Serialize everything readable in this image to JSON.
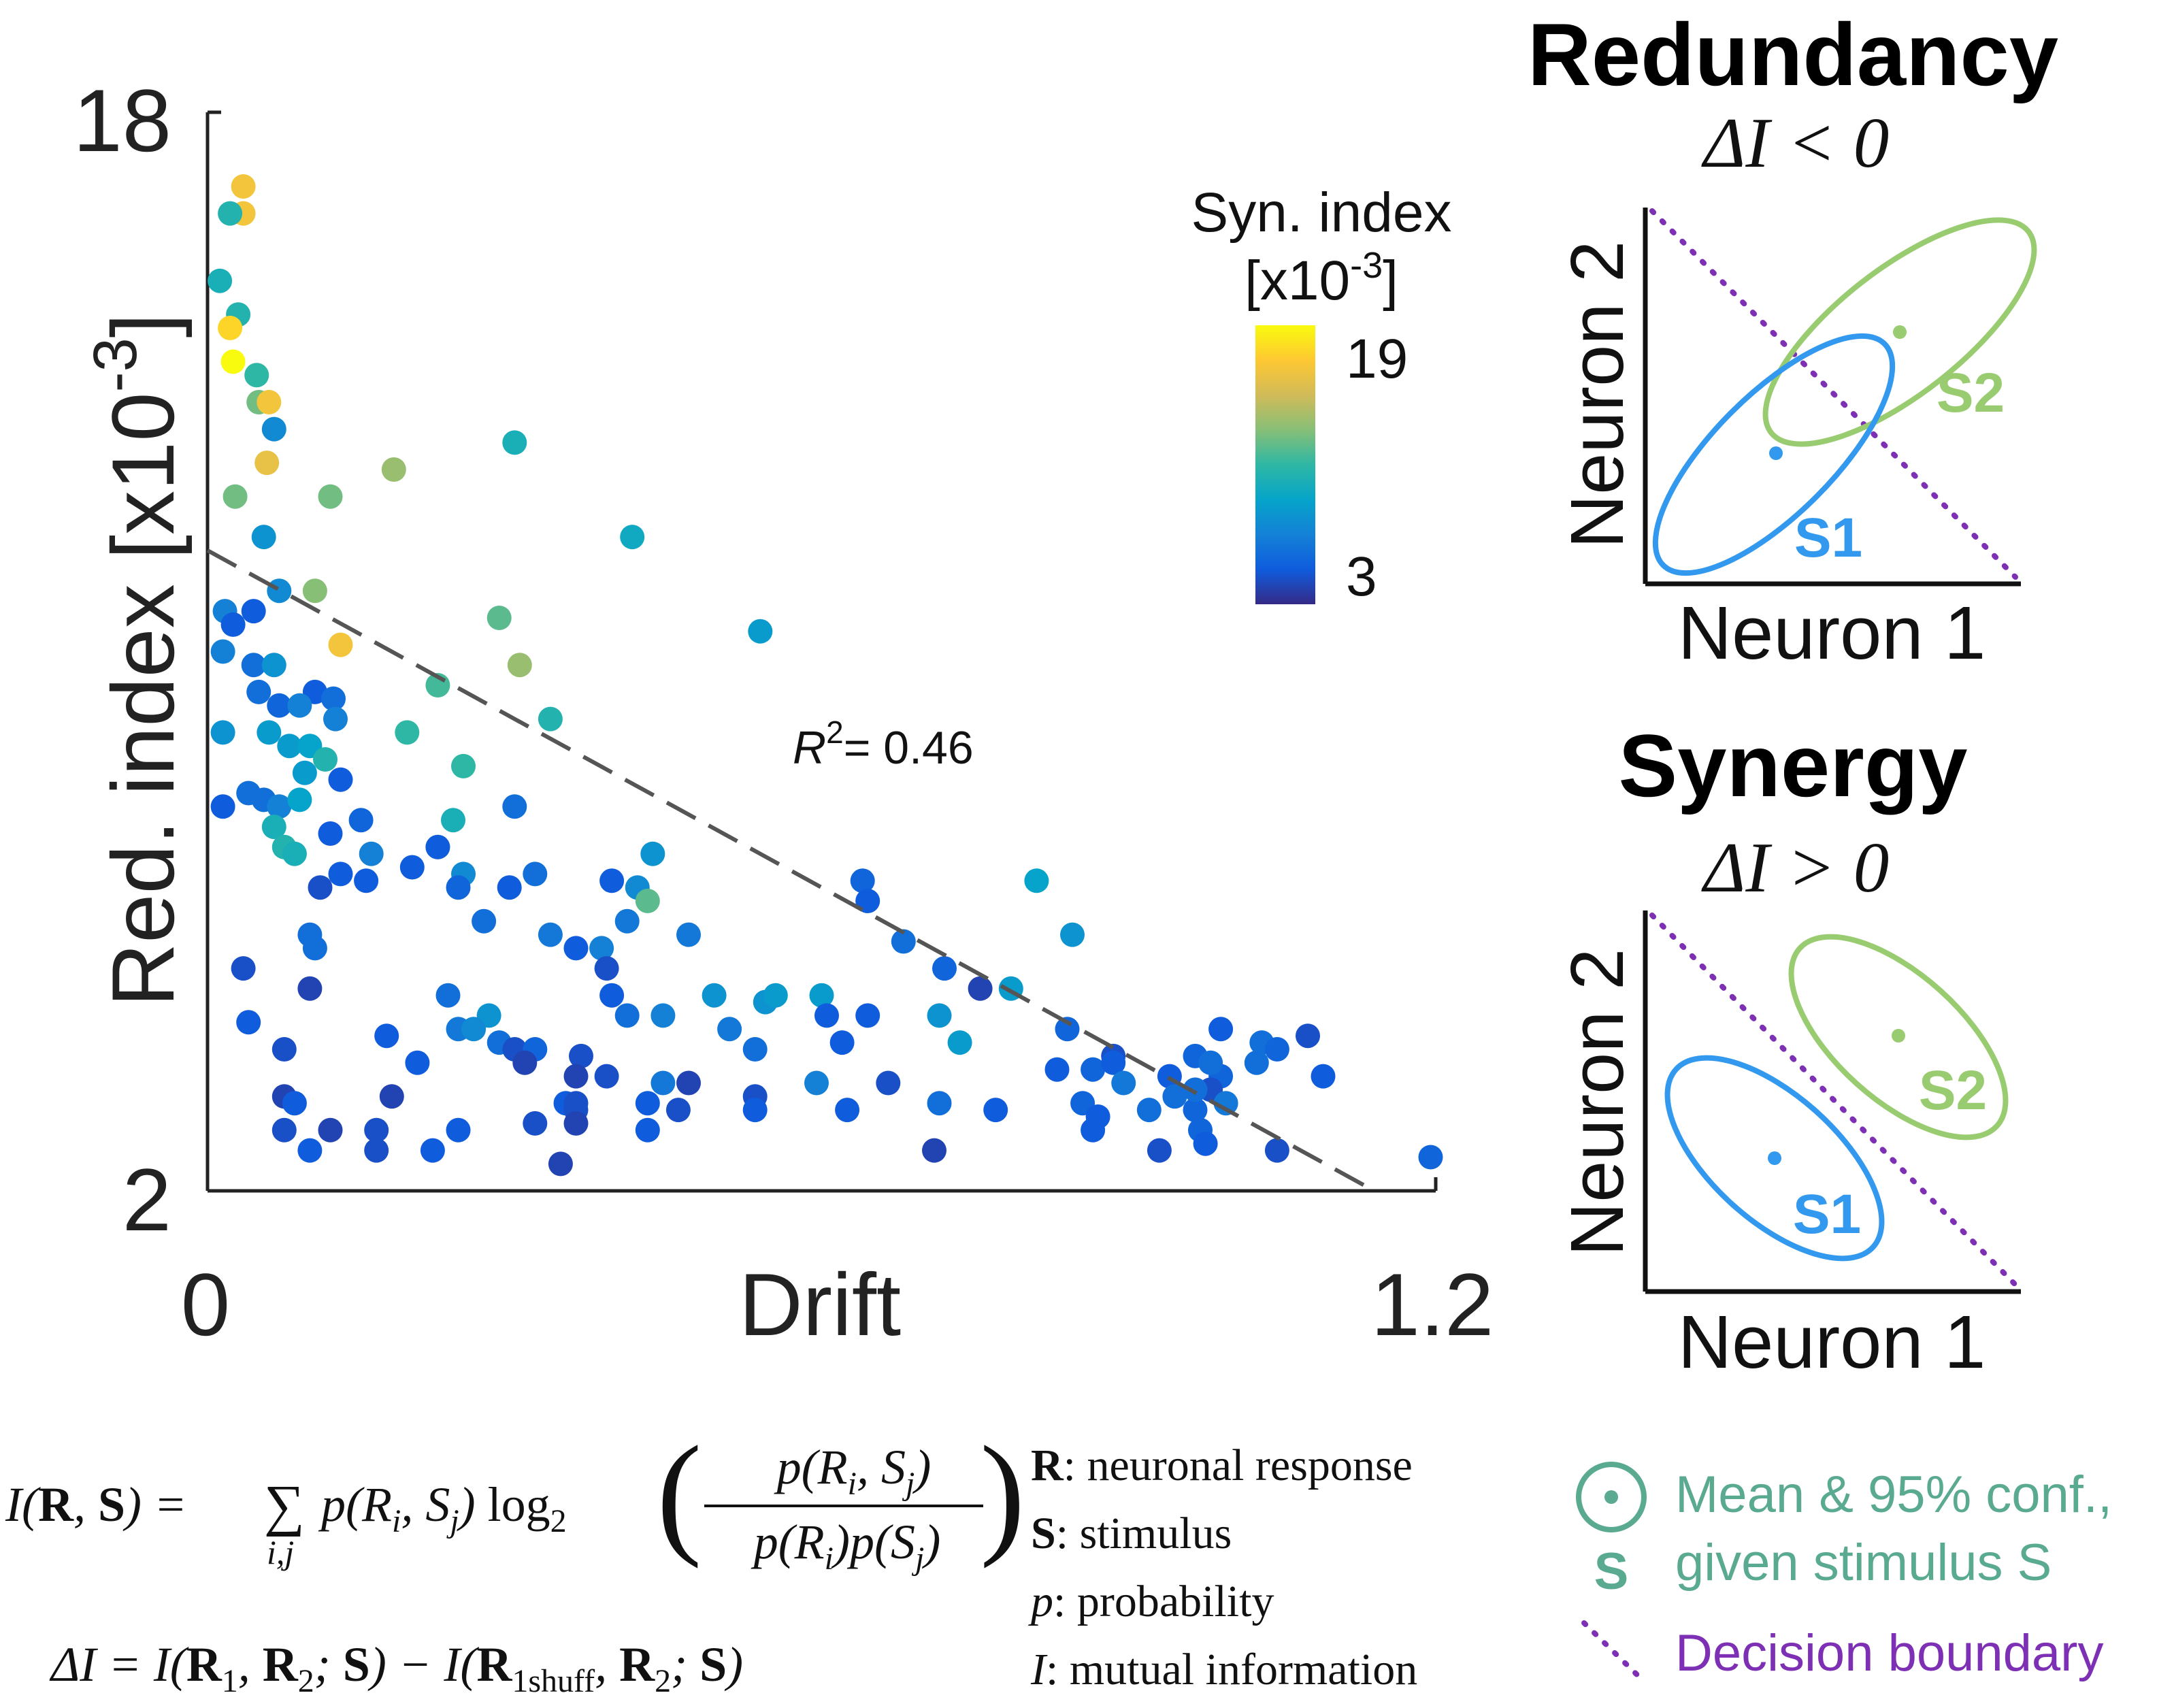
{
  "chart_data": {
    "type": "scatter",
    "xlabel": "Drift",
    "ylabel_main": "Red. index [x10",
    "ylabel_exp": "-3",
    "ylabel_close": "]",
    "xlim": [
      0,
      1.2
    ],
    "ylim": [
      2,
      18
    ],
    "x_ticks": [
      "0",
      "1.2"
    ],
    "y_ticks": [
      "18",
      "2"
    ],
    "r2_label": "R",
    "r2_sup": "2",
    "r2_value": "= 0.46",
    "fit_line": {
      "x": [
        0,
        1.14
      ],
      "y": [
        11.5,
        2
      ]
    },
    "colorbar": {
      "title_line1": "Syn. index",
      "title_line2_pre": "[x10",
      "title_line2_exp": "-3",
      "title_line2_post": "]",
      "max_label": "19",
      "min_label": "3",
      "range": [
        3,
        19
      ],
      "colormap": [
        "#352a87",
        "#0f5cdd",
        "#1481d6",
        "#06a4ca",
        "#2eb7a4",
        "#87bf77",
        "#d1bb59",
        "#fec832",
        "#f9fb0e"
      ]
    },
    "points": [
      {
        "x": 0.035,
        "y": 16.9,
        "c": 16.5
      },
      {
        "x": 0.035,
        "y": 16.5,
        "c": 16.5
      },
      {
        "x": 0.022,
        "y": 16.5,
        "c": 10.5
      },
      {
        "x": 0.012,
        "y": 15.5,
        "c": 10.0
      },
      {
        "x": 0.03,
        "y": 15.0,
        "c": 10.5
      },
      {
        "x": 0.022,
        "y": 14.8,
        "c": 17.5
      },
      {
        "x": 0.025,
        "y": 14.3,
        "c": 19.0
      },
      {
        "x": 0.048,
        "y": 14.1,
        "c": 11.0
      },
      {
        "x": 0.05,
        "y": 13.7,
        "c": 12.5
      },
      {
        "x": 0.06,
        "y": 13.7,
        "c": 16.5
      },
      {
        "x": 0.065,
        "y": 13.3,
        "c": 7.5
      },
      {
        "x": 0.058,
        "y": 12.8,
        "c": 16.0
      },
      {
        "x": 0.182,
        "y": 12.7,
        "c": 13.5
      },
      {
        "x": 0.3,
        "y": 13.1,
        "c": 10.0
      },
      {
        "x": 0.027,
        "y": 12.3,
        "c": 12.5
      },
      {
        "x": 0.12,
        "y": 12.3,
        "c": 12.5
      },
      {
        "x": 0.055,
        "y": 11.7,
        "c": 8.0
      },
      {
        "x": 0.415,
        "y": 11.7,
        "c": 9.5
      },
      {
        "x": 0.017,
        "y": 10.6,
        "c": 7.0
      },
      {
        "x": 0.07,
        "y": 10.9,
        "c": 7.5
      },
      {
        "x": 0.105,
        "y": 10.9,
        "c": 13.0
      },
      {
        "x": 0.045,
        "y": 10.6,
        "c": 5.0
      },
      {
        "x": 0.025,
        "y": 10.4,
        "c": 5.0
      },
      {
        "x": 0.285,
        "y": 10.5,
        "c": 12.0
      },
      {
        "x": 0.54,
        "y": 10.3,
        "c": 8.5
      },
      {
        "x": 0.13,
        "y": 10.1,
        "c": 16.5
      },
      {
        "x": 0.015,
        "y": 10.0,
        "c": 7.0
      },
      {
        "x": 0.045,
        "y": 9.8,
        "c": 6.0
      },
      {
        "x": 0.065,
        "y": 9.8,
        "c": 8.0
      },
      {
        "x": 0.305,
        "y": 9.8,
        "c": 13.5
      },
      {
        "x": 0.225,
        "y": 9.5,
        "c": 11.5
      },
      {
        "x": 0.05,
        "y": 9.4,
        "c": 6.0
      },
      {
        "x": 0.105,
        "y": 9.4,
        "c": 5.0
      },
      {
        "x": 0.123,
        "y": 9.3,
        "c": 6.0
      },
      {
        "x": 0.07,
        "y": 9.2,
        "c": 5.5
      },
      {
        "x": 0.09,
        "y": 9.2,
        "c": 7.0
      },
      {
        "x": 0.125,
        "y": 9.0,
        "c": 7.0
      },
      {
        "x": 0.335,
        "y": 9.0,
        "c": 10.5
      },
      {
        "x": 0.015,
        "y": 8.8,
        "c": 8.0
      },
      {
        "x": 0.06,
        "y": 8.8,
        "c": 8.5
      },
      {
        "x": 0.195,
        "y": 8.8,
        "c": 11.0
      },
      {
        "x": 0.08,
        "y": 8.6,
        "c": 8.5
      },
      {
        "x": 0.1,
        "y": 8.6,
        "c": 9.0
      },
      {
        "x": 0.115,
        "y": 8.4,
        "c": 10.5
      },
      {
        "x": 0.25,
        "y": 8.3,
        "c": 11.0
      },
      {
        "x": 0.095,
        "y": 8.2,
        "c": 8.5
      },
      {
        "x": 0.13,
        "y": 8.1,
        "c": 5.0
      },
      {
        "x": 0.04,
        "y": 7.9,
        "c": 6.0
      },
      {
        "x": 0.055,
        "y": 7.8,
        "c": 6.0
      },
      {
        "x": 0.015,
        "y": 7.7,
        "c": 5.0
      },
      {
        "x": 0.07,
        "y": 7.7,
        "c": 7.0
      },
      {
        "x": 0.09,
        "y": 7.8,
        "c": 9.0
      },
      {
        "x": 0.3,
        "y": 7.7,
        "c": 6.0
      },
      {
        "x": 0.065,
        "y": 7.4,
        "c": 10.0
      },
      {
        "x": 0.15,
        "y": 7.5,
        "c": 5.5
      },
      {
        "x": 0.24,
        "y": 7.5,
        "c": 10.0
      },
      {
        "x": 0.12,
        "y": 7.3,
        "c": 5.0
      },
      {
        "x": 0.075,
        "y": 7.1,
        "c": 10.5
      },
      {
        "x": 0.085,
        "y": 7.0,
        "c": 10.0
      },
      {
        "x": 0.225,
        "y": 7.1,
        "c": 13.0
      },
      {
        "x": 0.225,
        "y": 7.1,
        "c": 5.0
      },
      {
        "x": 0.16,
        "y": 7.0,
        "c": 7.0
      },
      {
        "x": 0.435,
        "y": 7.0,
        "c": 8.0
      },
      {
        "x": 0.13,
        "y": 6.7,
        "c": 5.0
      },
      {
        "x": 0.2,
        "y": 6.8,
        "c": 5.0
      },
      {
        "x": 0.25,
        "y": 6.7,
        "c": 7.5
      },
      {
        "x": 0.32,
        "y": 6.7,
        "c": 6.0
      },
      {
        "x": 0.155,
        "y": 6.6,
        "c": 5.0
      },
      {
        "x": 0.11,
        "y": 6.5,
        "c": 4.5
      },
      {
        "x": 0.245,
        "y": 6.5,
        "c": 5.5
      },
      {
        "x": 0.295,
        "y": 6.5,
        "c": 5.0
      },
      {
        "x": 0.395,
        "y": 6.6,
        "c": 5.0
      },
      {
        "x": 0.42,
        "y": 6.5,
        "c": 7.5
      },
      {
        "x": 0.64,
        "y": 6.6,
        "c": 5.5
      },
      {
        "x": 0.81,
        "y": 6.6,
        "c": 9.0
      },
      {
        "x": 0.43,
        "y": 6.3,
        "c": 12.0
      },
      {
        "x": 0.645,
        "y": 6.3,
        "c": 5.0
      },
      {
        "x": 0.27,
        "y": 6.0,
        "c": 6.0
      },
      {
        "x": 0.41,
        "y": 6.0,
        "c": 6.5
      },
      {
        "x": 0.1,
        "y": 5.8,
        "c": 6.0
      },
      {
        "x": 0.335,
        "y": 5.8,
        "c": 6.5
      },
      {
        "x": 0.47,
        "y": 5.8,
        "c": 6.5
      },
      {
        "x": 0.68,
        "y": 5.7,
        "c": 6.0
      },
      {
        "x": 0.845,
        "y": 5.8,
        "c": 8.0
      },
      {
        "x": 0.105,
        "y": 5.6,
        "c": 6.0
      },
      {
        "x": 0.36,
        "y": 5.6,
        "c": 5.0
      },
      {
        "x": 0.385,
        "y": 5.6,
        "c": 7.0
      },
      {
        "x": 0.035,
        "y": 5.3,
        "c": 4.5
      },
      {
        "x": 0.39,
        "y": 5.3,
        "c": 4.5
      },
      {
        "x": 0.72,
        "y": 5.3,
        "c": 5.5
      },
      {
        "x": 0.755,
        "y": 5.0,
        "c": 4.0
      },
      {
        "x": 0.785,
        "y": 5.0,
        "c": 8.5
      },
      {
        "x": 0.1,
        "y": 5.0,
        "c": 4.0
      },
      {
        "x": 0.235,
        "y": 4.9,
        "c": 6.0
      },
      {
        "x": 0.395,
        "y": 4.9,
        "c": 5.0
      },
      {
        "x": 0.495,
        "y": 4.9,
        "c": 8.0
      },
      {
        "x": 0.6,
        "y": 4.9,
        "c": 8.5
      },
      {
        "x": 0.545,
        "y": 4.8,
        "c": 8.0
      },
      {
        "x": 0.555,
        "y": 4.9,
        "c": 8.5
      },
      {
        "x": 0.275,
        "y": 4.6,
        "c": 8.0
      },
      {
        "x": 0.41,
        "y": 4.6,
        "c": 6.0
      },
      {
        "x": 0.445,
        "y": 4.6,
        "c": 7.0
      },
      {
        "x": 0.605,
        "y": 4.6,
        "c": 5.0
      },
      {
        "x": 0.645,
        "y": 4.6,
        "c": 5.0
      },
      {
        "x": 0.715,
        "y": 4.6,
        "c": 8.0
      },
      {
        "x": 0.04,
        "y": 4.5,
        "c": 5.0
      },
      {
        "x": 0.245,
        "y": 4.4,
        "c": 6.5
      },
      {
        "x": 0.26,
        "y": 4.4,
        "c": 7.5
      },
      {
        "x": 0.51,
        "y": 4.4,
        "c": 6.5
      },
      {
        "x": 0.84,
        "y": 4.4,
        "c": 5.5
      },
      {
        "x": 0.99,
        "y": 4.4,
        "c": 5.0
      },
      {
        "x": 0.175,
        "y": 4.3,
        "c": 5.0
      },
      {
        "x": 0.285,
        "y": 4.2,
        "c": 6.0
      },
      {
        "x": 0.735,
        "y": 4.2,
        "c": 8.5
      },
      {
        "x": 1.075,
        "y": 4.3,
        "c": 4.5
      },
      {
        "x": 1.03,
        "y": 4.2,
        "c": 6.0
      },
      {
        "x": 0.62,
        "y": 4.2,
        "c": 5.0
      },
      {
        "x": 0.075,
        "y": 4.1,
        "c": 4.5
      },
      {
        "x": 0.3,
        "y": 4.1,
        "c": 4.5
      },
      {
        "x": 0.32,
        "y": 4.1,
        "c": 5.5
      },
      {
        "x": 0.535,
        "y": 4.1,
        "c": 6.0
      },
      {
        "x": 0.365,
        "y": 4.0,
        "c": 4.5
      },
      {
        "x": 0.965,
        "y": 4.0,
        "c": 5.5
      },
      {
        "x": 1.045,
        "y": 4.1,
        "c": 5.5
      },
      {
        "x": 0.885,
        "y": 4.0,
        "c": 4.5
      },
      {
        "x": 0.205,
        "y": 3.9,
        "c": 5.0
      },
      {
        "x": 0.31,
        "y": 3.9,
        "c": 4.0
      },
      {
        "x": 0.83,
        "y": 3.8,
        "c": 5.0
      },
      {
        "x": 0.865,
        "y": 3.8,
        "c": 5.5
      },
      {
        "x": 0.885,
        "y": 3.9,
        "c": 5.0
      },
      {
        "x": 1.025,
        "y": 3.9,
        "c": 6.0
      },
      {
        "x": 0.94,
        "y": 3.7,
        "c": 5.0
      },
      {
        "x": 0.99,
        "y": 3.7,
        "c": 5.5
      },
      {
        "x": 1.09,
        "y": 3.7,
        "c": 5.0
      },
      {
        "x": 0.98,
        "y": 3.9,
        "c": 6.0
      },
      {
        "x": 0.36,
        "y": 3.7,
        "c": 4.0
      },
      {
        "x": 0.39,
        "y": 3.7,
        "c": 4.5
      },
      {
        "x": 0.445,
        "y": 3.6,
        "c": 6.5
      },
      {
        "x": 0.47,
        "y": 3.6,
        "c": 4.0
      },
      {
        "x": 0.595,
        "y": 3.6,
        "c": 7.0
      },
      {
        "x": 0.665,
        "y": 3.6,
        "c": 4.5
      },
      {
        "x": 0.895,
        "y": 3.6,
        "c": 6.5
      },
      {
        "x": 0.98,
        "y": 3.5,
        "c": 4.5
      },
      {
        "x": 0.075,
        "y": 3.4,
        "c": 4.0
      },
      {
        "x": 0.18,
        "y": 3.4,
        "c": 4.0
      },
      {
        "x": 0.35,
        "y": 3.3,
        "c": 5.0
      },
      {
        "x": 0.43,
        "y": 3.3,
        "c": 5.0
      },
      {
        "x": 0.535,
        "y": 3.4,
        "c": 4.5
      },
      {
        "x": 0.715,
        "y": 3.3,
        "c": 6.0
      },
      {
        "x": 0.965,
        "y": 3.2,
        "c": 5.5
      },
      {
        "x": 0.995,
        "y": 3.3,
        "c": 6.5
      },
      {
        "x": 0.855,
        "y": 3.3,
        "c": 5.5
      },
      {
        "x": 0.085,
        "y": 3.3,
        "c": 5.0
      },
      {
        "x": 0.36,
        "y": 3.2,
        "c": 4.5
      },
      {
        "x": 0.36,
        "y": 3.3,
        "c": 4.5
      },
      {
        "x": 0.46,
        "y": 3.2,
        "c": 4.5
      },
      {
        "x": 0.535,
        "y": 3.2,
        "c": 5.0
      },
      {
        "x": 0.625,
        "y": 3.2,
        "c": 5.0
      },
      {
        "x": 0.77,
        "y": 3.2,
        "c": 5.0
      },
      {
        "x": 0.92,
        "y": 3.2,
        "c": 6.0
      },
      {
        "x": 0.945,
        "y": 3.4,
        "c": 6.0
      },
      {
        "x": 0.965,
        "y": 3.5,
        "c": 6.0
      },
      {
        "x": 0.87,
        "y": 3.1,
        "c": 5.0
      },
      {
        "x": 0.36,
        "y": 3.0,
        "c": 4.0
      },
      {
        "x": 0.32,
        "y": 3.0,
        "c": 4.5
      },
      {
        "x": 0.245,
        "y": 2.9,
        "c": 5.0
      },
      {
        "x": 0.075,
        "y": 2.9,
        "c": 4.5
      },
      {
        "x": 0.165,
        "y": 2.9,
        "c": 4.5
      },
      {
        "x": 0.12,
        "y": 2.9,
        "c": 4.0
      },
      {
        "x": 0.97,
        "y": 2.9,
        "c": 5.5
      },
      {
        "x": 0.865,
        "y": 2.9,
        "c": 5.0
      },
      {
        "x": 0.43,
        "y": 2.9,
        "c": 5.0
      },
      {
        "x": 0.1,
        "y": 2.6,
        "c": 5.0
      },
      {
        "x": 0.165,
        "y": 2.6,
        "c": 4.5
      },
      {
        "x": 0.22,
        "y": 2.6,
        "c": 5.0
      },
      {
        "x": 0.345,
        "y": 2.4,
        "c": 4.0
      },
      {
        "x": 1.195,
        "y": 2.5,
        "c": 5.5
      },
      {
        "x": 0.975,
        "y": 2.7,
        "c": 5.0
      },
      {
        "x": 0.93,
        "y": 2.6,
        "c": 4.5
      },
      {
        "x": 1.045,
        "y": 2.6,
        "c": 4.5
      },
      {
        "x": 0.71,
        "y": 2.6,
        "c": 4.0
      }
    ]
  },
  "panels": {
    "redundancy": {
      "title": "Redundancy",
      "delta": "ΔI < 0",
      "xlabel": "Neuron 1",
      "ylabel": "Neuron 2",
      "s1": "S1",
      "s2": "S2"
    },
    "synergy": {
      "title": "Synergy",
      "delta": "ΔI > 0",
      "xlabel": "Neuron 1",
      "ylabel": "Neuron 2",
      "s1": "S1",
      "s2": "S2"
    }
  },
  "colors": {
    "blue": "#3399ee",
    "green": "#99cc70",
    "purple": "#7e30b5",
    "teal": "#5aaa92",
    "dark": "#222222"
  },
  "formulas": {
    "mi_lhs": "I(R, S) = ",
    "sum_sub": "i,j",
    "mi_term": "p(R",
    "log": "log",
    "log_sub": "2",
    "frac_num": "p(Rᵢ, Sⱼ)",
    "frac_den": "p(Rᵢ)p(Sⱼ)",
    "delta": "ΔI = I(R",
    "delta_full": "ΔI = I(R₁, R₂; S) − I(R₁shuff, R₂; S)"
  },
  "legend_defs": [
    {
      "sym": "R",
      "text": "neuronal response"
    },
    {
      "sym": "S",
      "text": "stimulus"
    },
    {
      "sym": "p",
      "text": "probability"
    },
    {
      "sym": "I",
      "text": "mutual information"
    }
  ],
  "key": {
    "mean_line1": "Mean & 95% conf.,",
    "mean_line2": "given stimulus S",
    "s_label": "S",
    "decision": "Decision boundary"
  }
}
